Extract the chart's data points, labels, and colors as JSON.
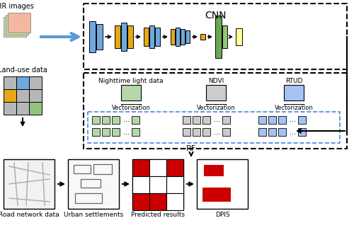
{
  "bg_color": "#ffffff",
  "colors": {
    "blue_block": "#6fa8dc",
    "orange_block": "#e6a817",
    "green_block": "#6aa84f",
    "light_green_block": "#93c47d",
    "yellow_block": "#ffff99",
    "light_green": "#b6d7a8",
    "light_gray": "#cccccc",
    "light_blue": "#a4c2f4",
    "salmon": "#f4b8a0",
    "salmon_dark": "#e8a080",
    "red": "#cc0000",
    "arrow_blue": "#5b9bd5",
    "grid_gray": "#aaaaaa",
    "land_blue": "#6fa8dc",
    "land_orange": "#e6a817",
    "land_green": "#93c47d",
    "land_gray": "#b7b7b7"
  },
  "labels": {
    "hr_images": "HR images",
    "cnn": "CNN",
    "land_use": "Land-use data",
    "nighttime": "Nighttime light data",
    "ndvi": "NDVI",
    "rtud": "RTUD",
    "vectorization": "Vectorization",
    "rf": "RF",
    "road_network": "Road network data",
    "urban_settlements": "Urban settlements",
    "predicted_results": "Predicted results",
    "dpis": "DPIS"
  }
}
